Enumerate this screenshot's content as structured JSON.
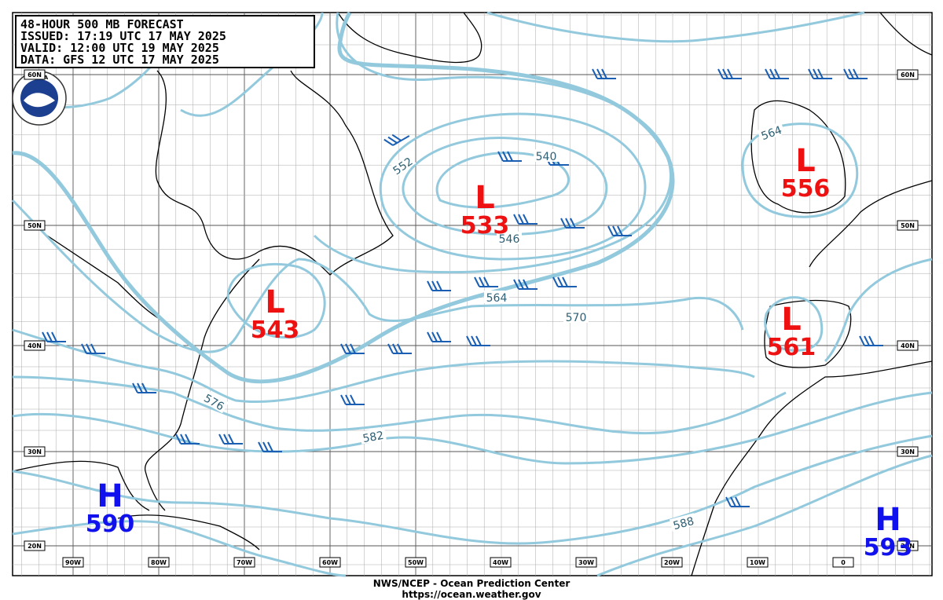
{
  "header": {
    "lines": [
      "48-HOUR 500 MB FORECAST",
      "ISSUED:  17:19 UTC 17 MAY 2025",
      "VALID:   12:00 UTC 19 MAY 2025",
      "DATA:   GFS 12 UTC 17 MAY 2025"
    ]
  },
  "logo": "NOAA",
  "lat_labels": [
    "60N",
    "50N",
    "40N",
    "30N",
    "20N"
  ],
  "lon_labels": [
    "90W",
    "80W",
    "70W",
    "60W",
    "50W",
    "40W",
    "30W",
    "20W",
    "10W",
    "0"
  ],
  "contour_labels": [
    552,
    540,
    546,
    564,
    570,
    576,
    582,
    588,
    564
  ],
  "centers": [
    {
      "symbol": "L",
      "value": 533
    },
    {
      "symbol": "L",
      "value": 543
    },
    {
      "symbol": "L",
      "value": 556
    },
    {
      "symbol": "L",
      "value": 561
    },
    {
      "symbol": "H",
      "value": 590
    },
    {
      "symbol": "H",
      "value": 593
    }
  ],
  "footer": [
    "NWS/NCEP - Ocean Prediction Center",
    "https://ocean.weather.gov"
  ]
}
